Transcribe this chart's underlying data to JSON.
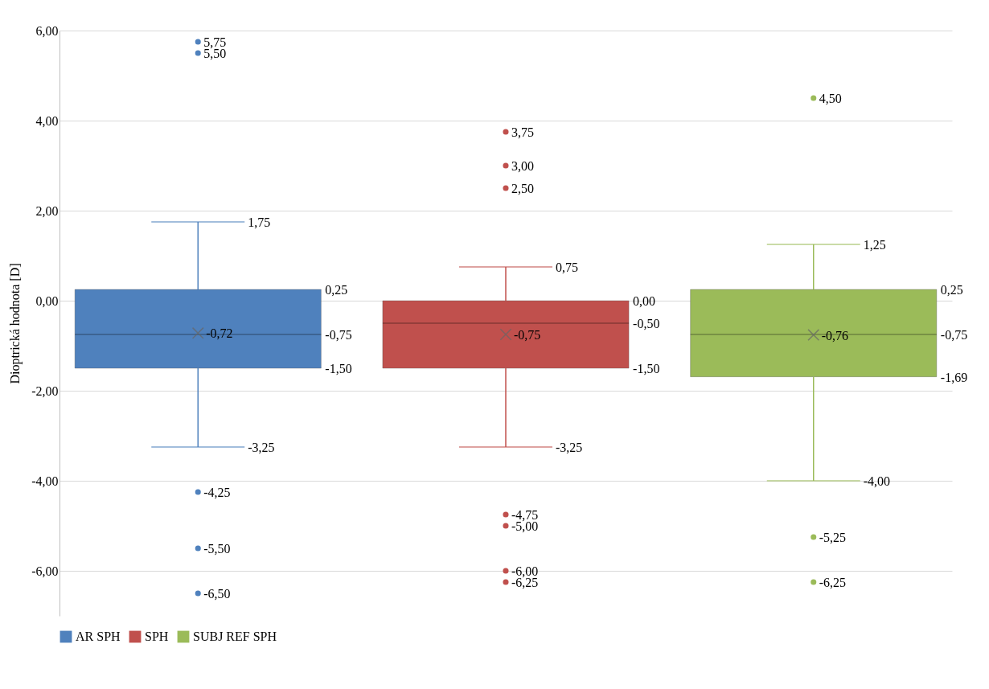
{
  "chart_data": {
    "type": "box",
    "ylabel": "Dioptrická hodnota  [D]",
    "categories": [
      null
    ],
    "series": [
      {
        "name": "AR SPH",
        "color": "#4f81bd",
        "boxes": [
          {
            "low": -3.25,
            "q1": -1.5,
            "median": -0.75,
            "q3": 0.25,
            "high": 1.75,
            "mean": -0.72,
            "outliers": [
              5.75,
              5.5,
              -4.25,
              -5.5,
              -6.5
            ]
          }
        ]
      },
      {
        "name": "SPH",
        "color": "#c0504d",
        "boxes": [
          {
            "low": -3.25,
            "q1": -1.5,
            "median": -0.5,
            "q3": 0,
            "high": 0.75,
            "mean": -0.75,
            "outliers": [
              3.75,
              3,
              2.5,
              -4.75,
              -5,
              -6,
              -6.25
            ]
          }
        ]
      },
      {
        "name": "SUBJ REF SPH",
        "color": "#9bbb59",
        "boxes": [
          {
            "low": -4,
            "q1": -1.69,
            "median": -0.75,
            "q3": 0.25,
            "high": 1.25,
            "mean": -0.76,
            "outliers": [
              4.5,
              -5.25,
              -6.25
            ]
          }
        ]
      }
    ],
    "ylim": [
      -7,
      6
    ],
    "yticks": [
      {
        "value": -6,
        "label": "-6,00"
      },
      {
        "value": -4,
        "label": "-4,00"
      },
      {
        "value": -2,
        "label": "-2,00"
      },
      {
        "value": 0,
        "label": "0,00"
      },
      {
        "value": 2,
        "label": "2,00"
      },
      {
        "value": 4,
        "label": "4,00"
      },
      {
        "value": 6,
        "label": "6,00"
      }
    ],
    "annotations": [
      "-0,72",
      "0,25",
      "-0,75",
      "-1,50",
      "1,75",
      "-3,25",
      "5,75",
      "5,50",
      "-4,25",
      "-5,50",
      "-6,50",
      "-0,75",
      "0,00",
      "-0,50",
      "-1,50",
      "0,75",
      "-3,25",
      "3,75",
      "3,00",
      "2,50",
      "-4,75",
      "-5,00",
      "-6,00",
      "-6,25",
      "-0,76",
      "0,25",
      "-0,75",
      "-1,69",
      "1,25",
      "-4,00",
      "4,50",
      "-5,25",
      "-6,25"
    ],
    "grid": "y",
    "legend": "bottom",
    "tick_labels": "y"
  }
}
